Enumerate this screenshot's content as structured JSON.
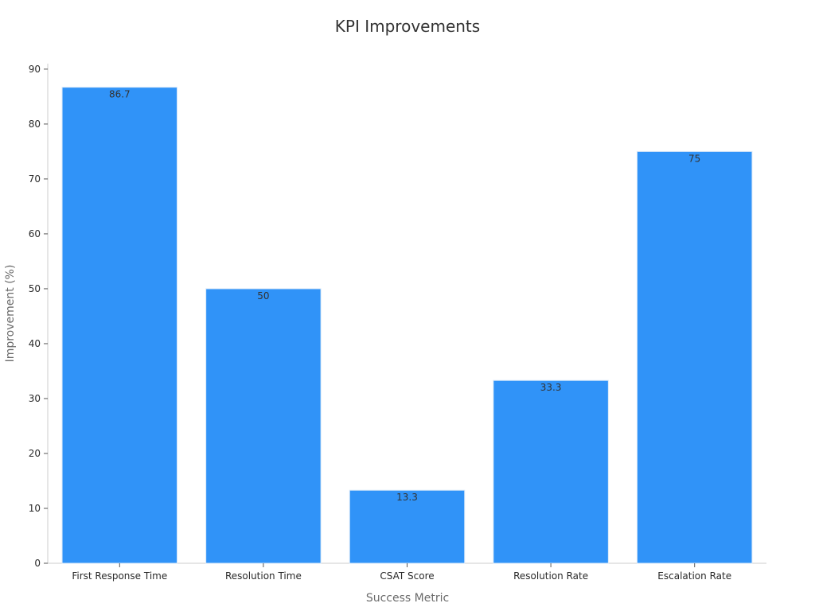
{
  "chart_data": {
    "type": "bar",
    "title": "KPI Improvements",
    "xlabel": "Success Metric",
    "ylabel": "Improvement (%)",
    "categories": [
      "First Response Time",
      "Resolution Time",
      "CSAT Score",
      "Resolution Rate",
      "Escalation Rate"
    ],
    "values": [
      86.7,
      50,
      13.3,
      33.3,
      75
    ],
    "data_labels": [
      "86.7",
      "50",
      "13.3",
      "33.3",
      "75"
    ],
    "ylim": [
      0,
      91
    ],
    "yticks": [
      0,
      10,
      20,
      30,
      40,
      50,
      60,
      70,
      80,
      90
    ],
    "grid": false,
    "legend": "none",
    "bar_color": "#3093f8"
  }
}
